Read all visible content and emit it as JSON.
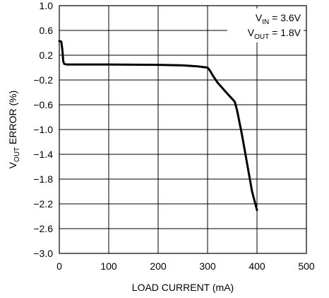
{
  "chart_data": {
    "type": "line",
    "xlabel": "LOAD CURRENT (mA)",
    "ylabel": {
      "prefix": "V",
      "sub": "OUT",
      "suffix": " ERROR (%)"
    },
    "xlim": [
      0,
      500
    ],
    "ylim": [
      -3.0,
      1.0
    ],
    "grid": true,
    "x_ticks": [
      0,
      100,
      200,
      300,
      400,
      500
    ],
    "x_tick_labels": [
      "0",
      "100",
      "200",
      "300",
      "400",
      "500"
    ],
    "y_ticks": [
      1.0,
      0.6,
      0.2,
      -0.2,
      -0.6,
      -1.0,
      -1.4,
      -1.8,
      -2.2,
      -2.6,
      -3.0
    ],
    "y_tick_labels": [
      "1.0",
      "0.6",
      "0.2",
      "−0.2",
      "−0.6",
      "−1.0",
      "−1.4",
      "−1.8",
      "−2.2",
      "−2.6",
      "−3.0"
    ],
    "annotations": [
      {
        "main": "V",
        "sub": "IN",
        "rest": " = 3.6V"
      },
      {
        "main": "V",
        "sub": "OUT",
        "rest": " = 1.8V"
      }
    ],
    "series": [
      {
        "x": [
          0,
          4,
          6,
          8,
          10,
          15,
          30,
          100,
          200,
          250,
          280,
          300,
          305,
          310,
          320,
          340,
          355,
          360,
          370,
          380,
          390,
          400
        ],
        "y": [
          0.43,
          0.42,
          0.3,
          0.1,
          0.06,
          0.05,
          0.05,
          0.05,
          0.045,
          0.035,
          0.02,
          0.0,
          -0.05,
          -0.12,
          -0.24,
          -0.42,
          -0.55,
          -0.7,
          -1.1,
          -1.55,
          -2.0,
          -2.3
        ]
      }
    ]
  }
}
